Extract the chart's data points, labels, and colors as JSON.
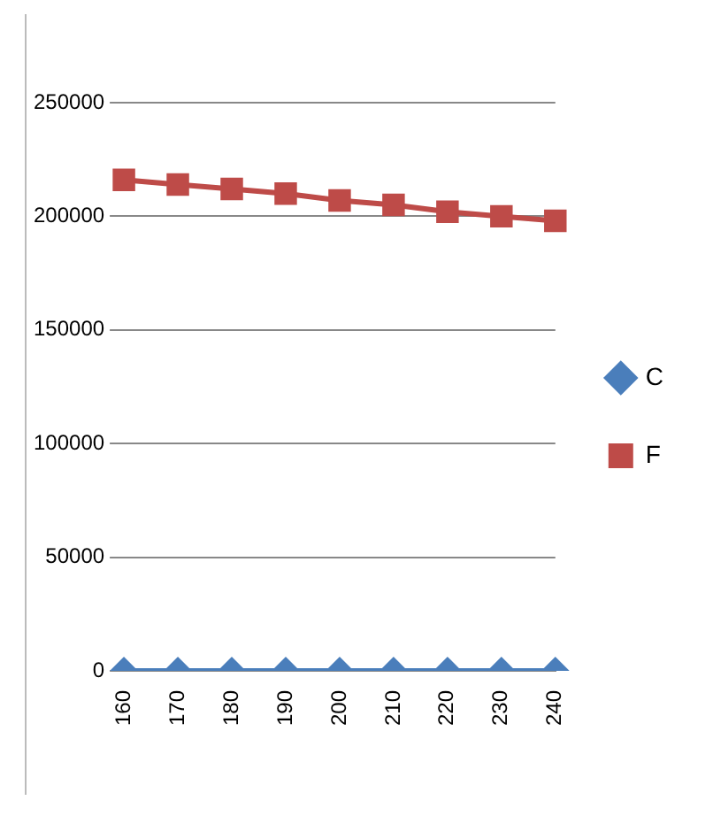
{
  "chart_data": {
    "type": "line",
    "categories": [
      "160",
      "170",
      "180",
      "190",
      "200",
      "210",
      "220",
      "230",
      "240"
    ],
    "series": [
      {
        "name": "C",
        "color": "#4a7ebb",
        "marker": "diamond",
        "values": [
          0,
          0,
          0,
          0,
          0,
          0,
          0,
          0,
          0
        ]
      },
      {
        "name": "F",
        "color": "#be4b48",
        "marker": "square",
        "values": [
          216000,
          214000,
          212000,
          210000,
          207000,
          205000,
          202000,
          200000,
          198000
        ]
      }
    ],
    "ylim": [
      0,
      250000
    ],
    "yticks": [
      0,
      50000,
      100000,
      150000,
      200000,
      250000
    ],
    "grid": "y",
    "legend": "right"
  }
}
